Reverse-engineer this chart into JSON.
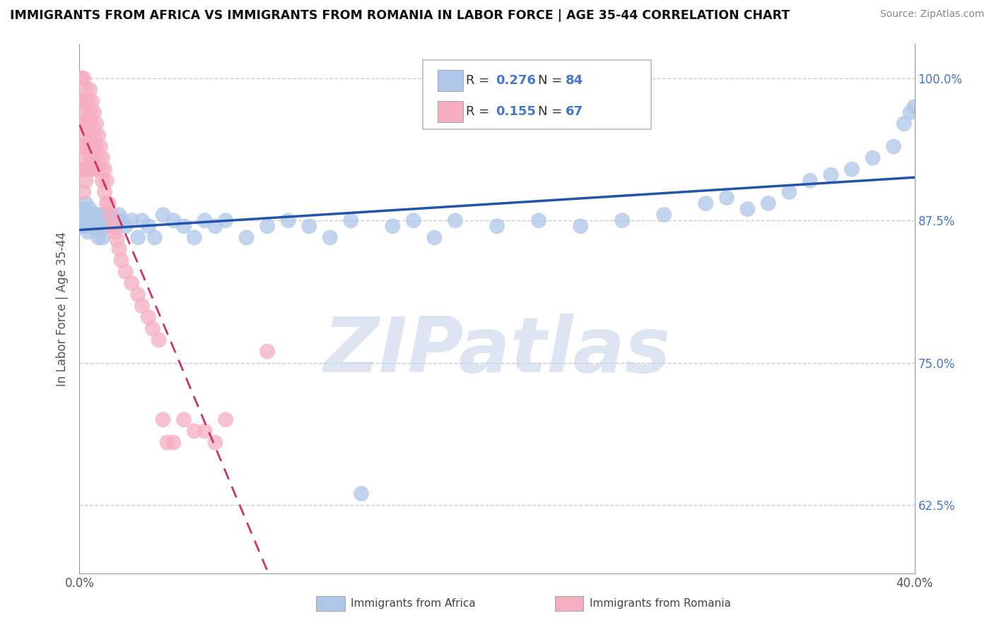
{
  "title": "IMMIGRANTS FROM AFRICA VS IMMIGRANTS FROM ROMANIA IN LABOR FORCE | AGE 35-44 CORRELATION CHART",
  "source": "Source: ZipAtlas.com",
  "ylabel": "In Labor Force | Age 35-44",
  "xlim": [
    0.0,
    0.4
  ],
  "ylim": [
    0.565,
    1.03
  ],
  "yticks": [
    0.625,
    0.75,
    0.875,
    1.0
  ],
  "yticklabels": [
    "62.5%",
    "75.0%",
    "87.5%",
    "100.0%"
  ],
  "blue_color": "#aec6e8",
  "pink_color": "#f5aec0",
  "blue_line_color": "#2255aa",
  "pink_line_color": "#cc3366",
  "watermark": "ZIPatlas",
  "watermark_color": "#c5d5e8",
  "legend_label_blue": "Immigrants from Africa",
  "legend_label_pink": "Immigrants from Romania",
  "blue_x": [
    0.001,
    0.001,
    0.001,
    0.002,
    0.002,
    0.002,
    0.002,
    0.003,
    0.003,
    0.003,
    0.003,
    0.004,
    0.004,
    0.004,
    0.005,
    0.005,
    0.005,
    0.006,
    0.006,
    0.006,
    0.007,
    0.007,
    0.007,
    0.008,
    0.008,
    0.008,
    0.009,
    0.009,
    0.01,
    0.01,
    0.011,
    0.011,
    0.012,
    0.012,
    0.013,
    0.014,
    0.015,
    0.016,
    0.017,
    0.018,
    0.019,
    0.02,
    0.022,
    0.025,
    0.028,
    0.03,
    0.033,
    0.036,
    0.04,
    0.045,
    0.05,
    0.055,
    0.06,
    0.065,
    0.07,
    0.08,
    0.09,
    0.1,
    0.11,
    0.12,
    0.13,
    0.15,
    0.16,
    0.17,
    0.18,
    0.2,
    0.22,
    0.24,
    0.26,
    0.28,
    0.3,
    0.31,
    0.32,
    0.33,
    0.34,
    0.35,
    0.36,
    0.37,
    0.38,
    0.39,
    0.395,
    0.398,
    0.4,
    0.135
  ],
  "blue_y": [
    0.875,
    0.88,
    0.87,
    0.875,
    0.88,
    0.885,
    0.87,
    0.875,
    0.88,
    0.87,
    0.89,
    0.875,
    0.865,
    0.88,
    0.875,
    0.87,
    0.885,
    0.875,
    0.88,
    0.87,
    0.875,
    0.88,
    0.87,
    0.875,
    0.88,
    0.87,
    0.875,
    0.86,
    0.875,
    0.88,
    0.875,
    0.86,
    0.875,
    0.88,
    0.87,
    0.875,
    0.88,
    0.875,
    0.87,
    0.875,
    0.88,
    0.875,
    0.87,
    0.875,
    0.86,
    0.875,
    0.87,
    0.86,
    0.88,
    0.875,
    0.87,
    0.86,
    0.875,
    0.87,
    0.875,
    0.86,
    0.87,
    0.875,
    0.87,
    0.86,
    0.875,
    0.87,
    0.875,
    0.86,
    0.875,
    0.87,
    0.875,
    0.87,
    0.875,
    0.88,
    0.89,
    0.895,
    0.885,
    0.89,
    0.9,
    0.91,
    0.915,
    0.92,
    0.93,
    0.94,
    0.96,
    0.97,
    0.975,
    0.635
  ],
  "pink_x": [
    0.001,
    0.001,
    0.001,
    0.001,
    0.001,
    0.002,
    0.002,
    0.002,
    0.002,
    0.002,
    0.002,
    0.003,
    0.003,
    0.003,
    0.003,
    0.003,
    0.004,
    0.004,
    0.004,
    0.004,
    0.005,
    0.005,
    0.005,
    0.005,
    0.006,
    0.006,
    0.006,
    0.006,
    0.007,
    0.007,
    0.007,
    0.008,
    0.008,
    0.008,
    0.009,
    0.009,
    0.01,
    0.01,
    0.011,
    0.011,
    0.012,
    0.012,
    0.013,
    0.013,
    0.014,
    0.015,
    0.016,
    0.017,
    0.018,
    0.019,
    0.02,
    0.022,
    0.025,
    0.028,
    0.03,
    0.033,
    0.035,
    0.038,
    0.04,
    0.042,
    0.045,
    0.05,
    0.055,
    0.06,
    0.065,
    0.07,
    0.09
  ],
  "pink_y": [
    1.0,
    0.98,
    0.96,
    0.94,
    0.92,
    1.0,
    0.98,
    0.96,
    0.94,
    0.92,
    0.9,
    0.99,
    0.97,
    0.95,
    0.93,
    0.91,
    0.98,
    0.96,
    0.94,
    0.92,
    0.99,
    0.97,
    0.95,
    0.93,
    0.98,
    0.96,
    0.94,
    0.92,
    0.97,
    0.95,
    0.93,
    0.96,
    0.94,
    0.92,
    0.95,
    0.93,
    0.94,
    0.92,
    0.93,
    0.91,
    0.92,
    0.9,
    0.91,
    0.89,
    0.89,
    0.88,
    0.87,
    0.865,
    0.858,
    0.85,
    0.84,
    0.83,
    0.82,
    0.81,
    0.8,
    0.79,
    0.78,
    0.77,
    0.7,
    0.68,
    0.68,
    0.7,
    0.69,
    0.69,
    0.68,
    0.7,
    0.76
  ]
}
